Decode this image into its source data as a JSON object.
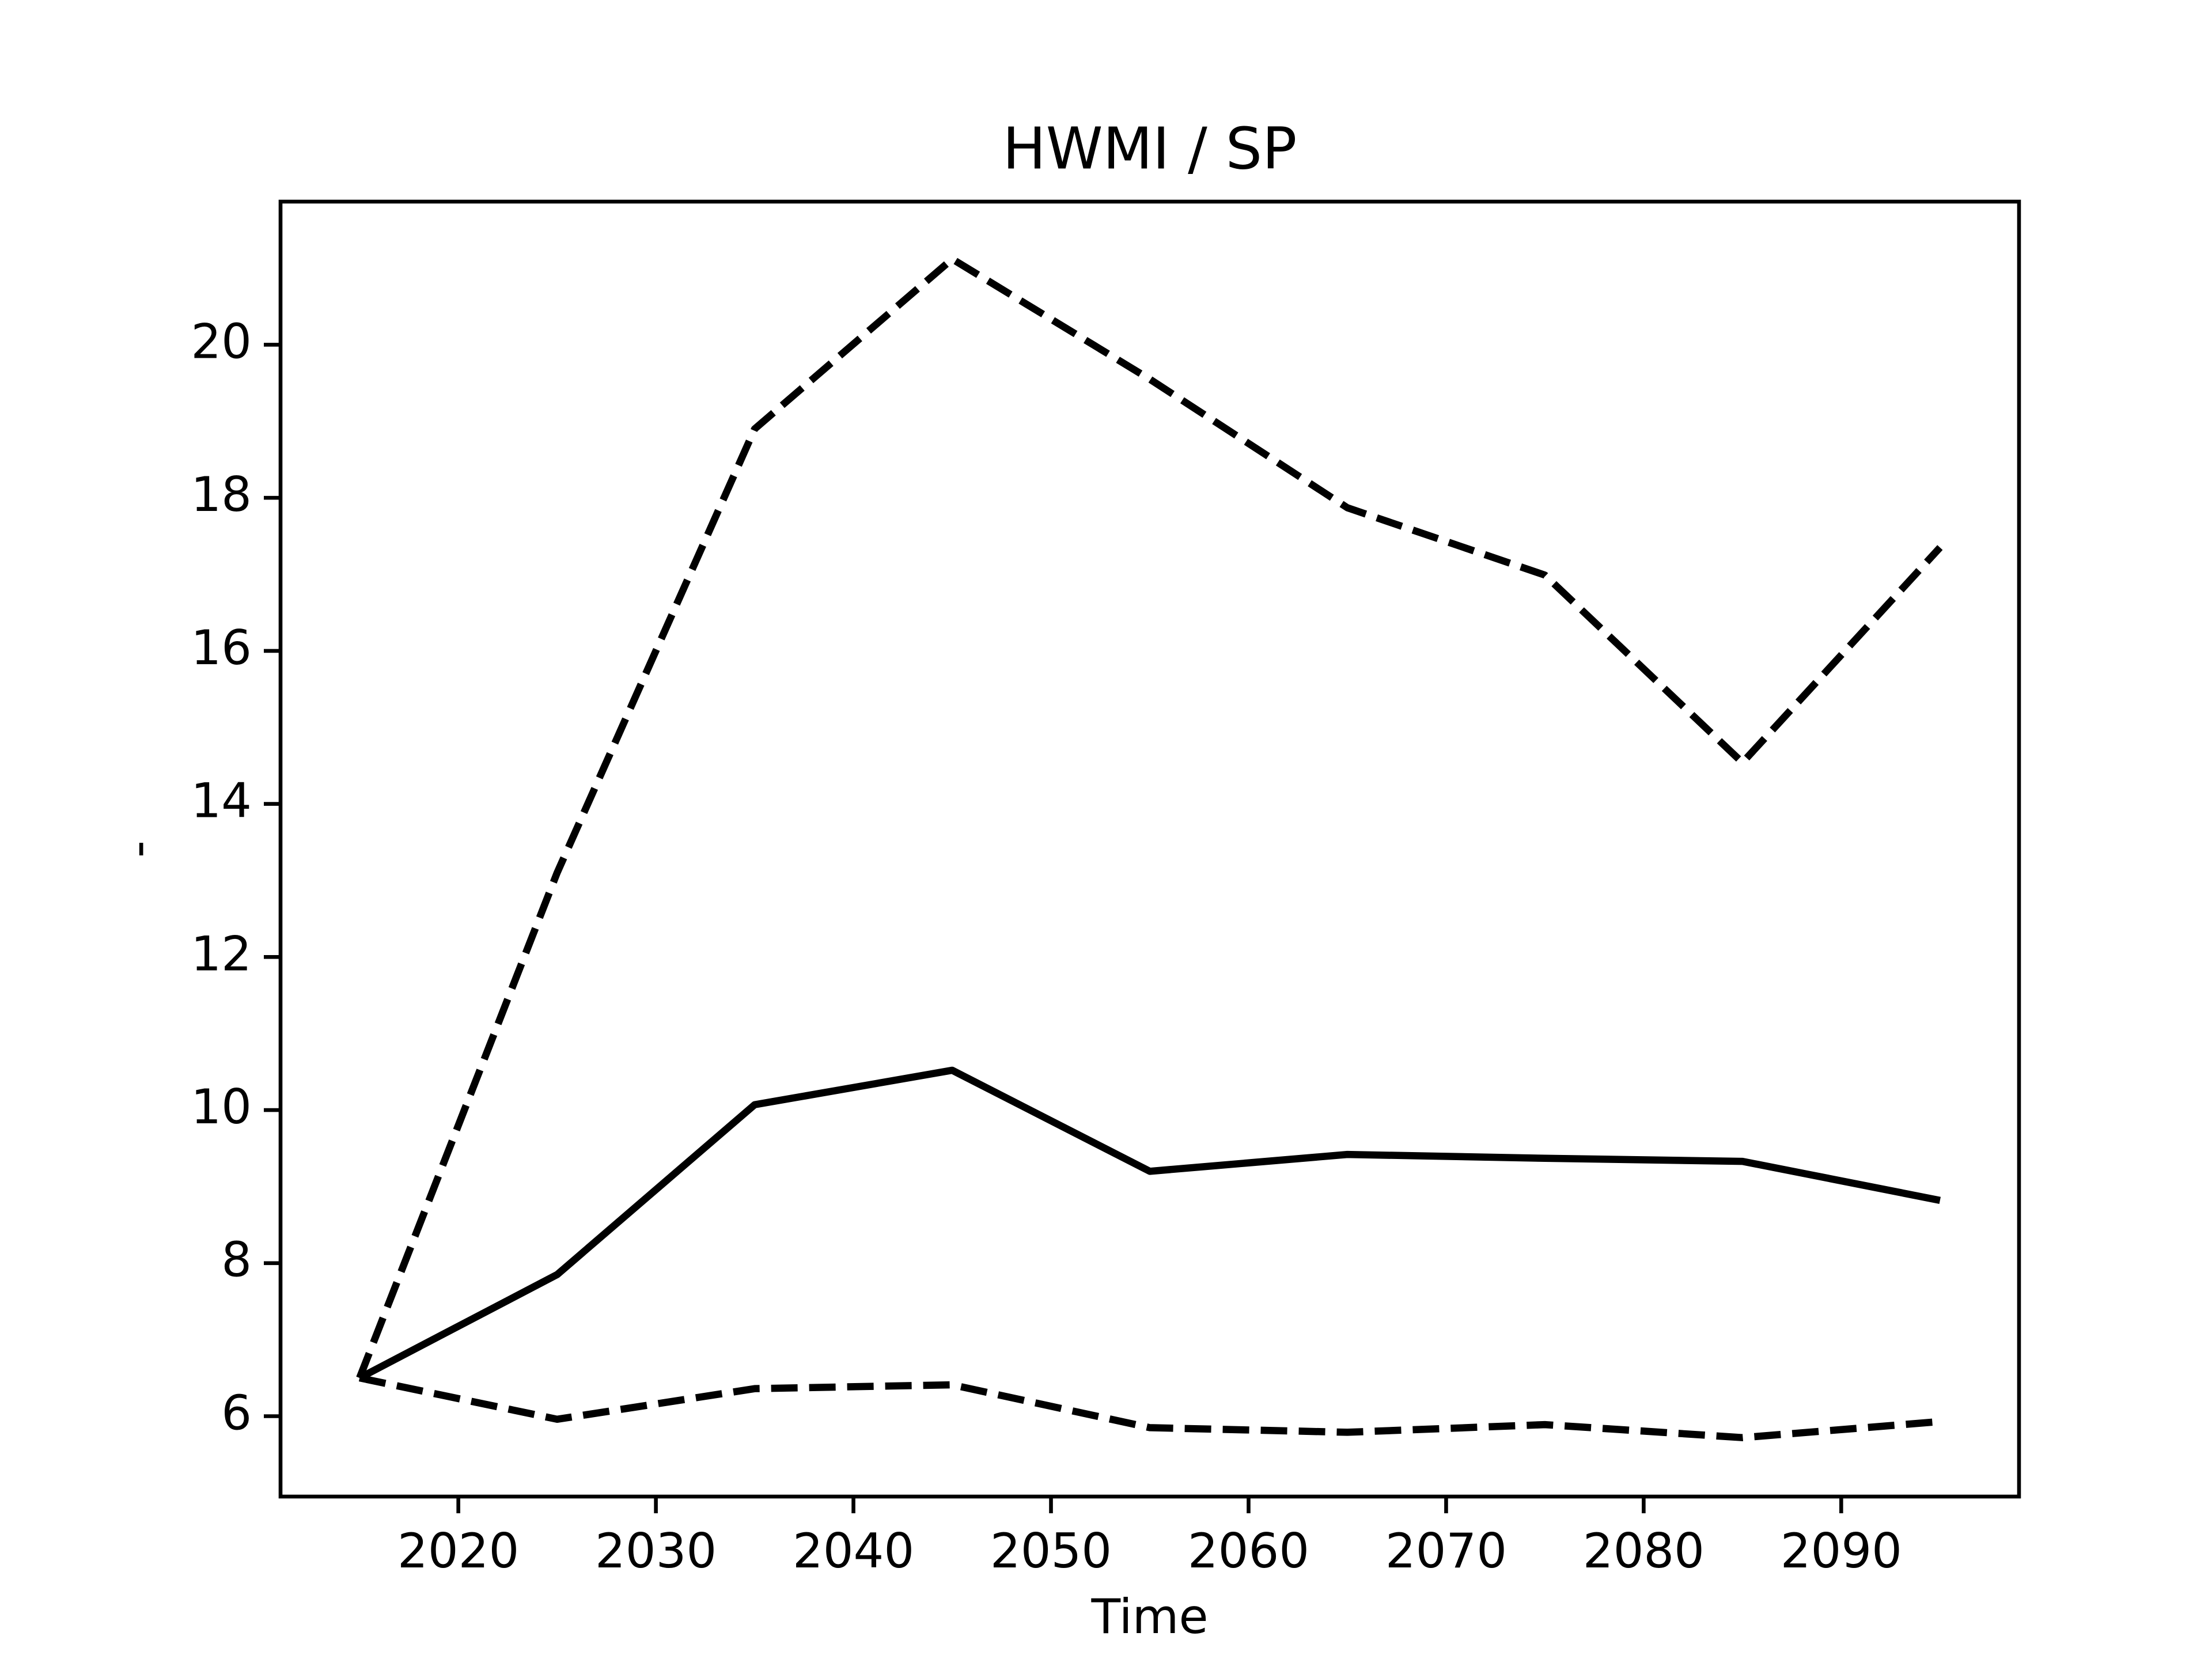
{
  "chart_data": {
    "type": "line",
    "title": "HWMI / SP",
    "xlabel": "Time",
    "ylabel": "-",
    "x": [
      2015,
      2025,
      2035,
      2045,
      2055,
      2065,
      2075,
      2085,
      2095
    ],
    "series": [
      {
        "color": "#000000",
        "dashed": false,
        "values": [
          6.5,
          7.85,
          10.07,
          10.52,
          9.2,
          9.42,
          9.37,
          9.33,
          8.82
        ]
      },
      {
        "color": "#000000",
        "dashed": true,
        "values": [
          6.5,
          13.1,
          18.9,
          21.12,
          19.55,
          17.87,
          16.99,
          14.54,
          17.35
        ]
      },
      {
        "color": "#000000",
        "dashed": true,
        "values": [
          6.5,
          5.96,
          6.36,
          6.41,
          5.85,
          5.79,
          5.89,
          5.72,
          5.93
        ]
      }
    ],
    "xlim": [
      2011,
      2099
    ],
    "xticks": [
      2020,
      2030,
      2040,
      2050,
      2060,
      2070,
      2080,
      2090
    ],
    "ylim": [
      4.95,
      21.87
    ],
    "yticks": [
      6,
      8,
      10,
      12,
      14,
      16,
      18,
      20
    ],
    "grid": false
  }
}
